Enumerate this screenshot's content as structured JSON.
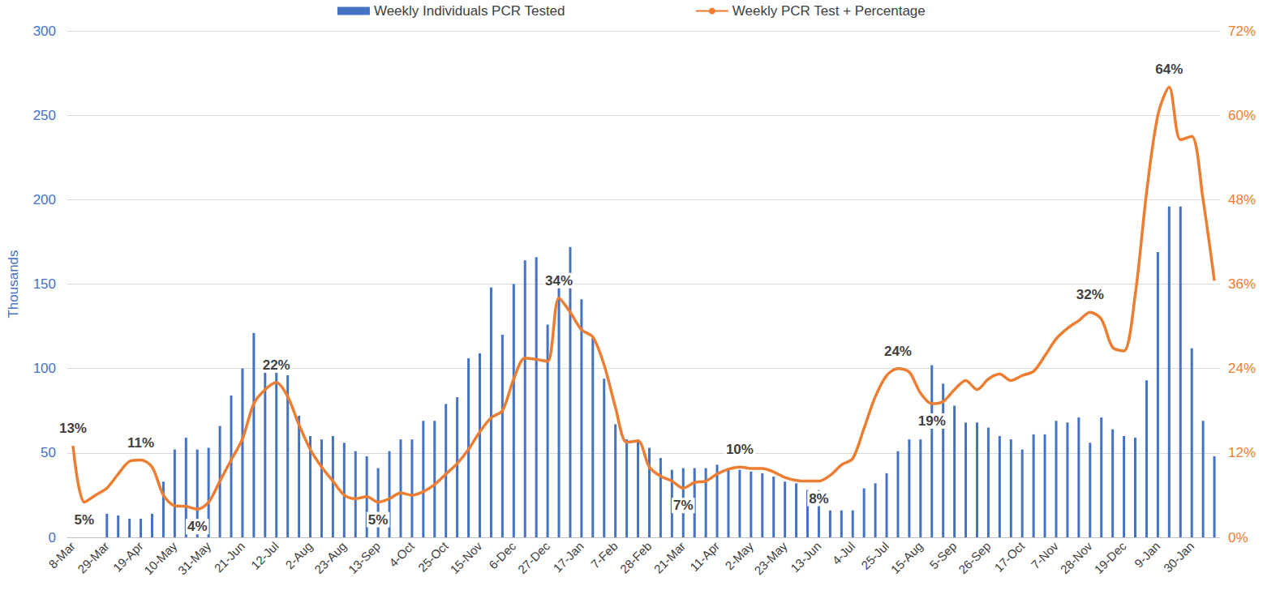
{
  "chart_data": {
    "type": "bar",
    "ylabel": "Thousands",
    "categories": [
      "8-Mar",
      null,
      null,
      "29-Mar",
      null,
      null,
      "19-Apr",
      null,
      null,
      "10-May",
      null,
      null,
      "31-May",
      null,
      null,
      "21-Jun",
      null,
      null,
      "12-Jul",
      null,
      null,
      "2-Aug",
      null,
      null,
      "23-Aug",
      null,
      null,
      "13-Sep",
      null,
      null,
      "4-Oct",
      null,
      null,
      "25-Oct",
      null,
      null,
      "15-Nov",
      null,
      null,
      "6-Dec",
      null,
      null,
      "27-Dec",
      null,
      null,
      "17-Jan",
      null,
      null,
      "7-Feb",
      null,
      null,
      "28-Feb",
      null,
      null,
      "21-Mar",
      null,
      null,
      "11-Apr",
      null,
      null,
      "2-May",
      null,
      null,
      "23-May",
      null,
      null,
      "13-Jun",
      null,
      null,
      "4-Jul",
      null,
      null,
      "25-Jul",
      null,
      null,
      "15-Aug",
      null,
      null,
      "5-Sep",
      null,
      null,
      "26-Sep",
      null,
      null,
      "17-Oct",
      null,
      null,
      "7-Nov",
      null,
      null,
      "28-Nov",
      null,
      null,
      "19-Dec",
      null,
      null,
      "9-Jan",
      null,
      null,
      "30-Jan",
      null,
      null
    ],
    "series": [
      {
        "name": "Weekly Individuals PCR Tested",
        "type": "bar",
        "color": "#4472c4",
        "values": [
          null,
          null,
          null,
          14,
          13,
          11,
          11,
          14,
          33,
          52,
          59,
          52,
          53,
          66,
          84,
          100,
          121,
          106,
          104,
          96,
          72,
          60,
          58,
          60,
          56,
          51,
          48,
          41,
          51,
          58,
          58,
          69,
          69,
          79,
          83,
          106,
          109,
          148,
          120,
          150,
          164,
          166,
          126,
          151,
          172,
          141,
          118,
          94,
          67,
          58,
          58,
          53,
          47,
          40,
          41,
          41,
          41,
          43,
          41,
          40,
          39,
          38,
          36,
          33,
          32,
          28,
          28,
          16,
          16,
          16,
          29,
          32,
          38,
          51,
          58,
          58,
          102,
          91,
          78,
          68,
          68,
          65,
          60,
          58,
          52,
          61,
          61,
          69,
          68,
          71,
          56,
          71,
          64,
          60,
          59,
          93,
          169,
          196,
          196,
          112,
          69,
          48
        ]
      },
      {
        "name": "Weekly PCR Test + Percentage",
        "type": "line",
        "axis": "y2",
        "color": "#ed7d31",
        "values": [
          13,
          5,
          6,
          7,
          9,
          10.8,
          11,
          10,
          6,
          4.5,
          4.4,
          4,
          5,
          8,
          11,
          14,
          19,
          21,
          22,
          20,
          16,
          12.5,
          10,
          8,
          6,
          5.5,
          5.8,
          5,
          5.5,
          6.3,
          6,
          6.5,
          7.5,
          9,
          10.5,
          12.5,
          15,
          17,
          18,
          22.5,
          25.5,
          25.3,
          25,
          34,
          32,
          29.5,
          28.5,
          24.5,
          18.5,
          13.5,
          13.7,
          10,
          8.7,
          8,
          7,
          7.8,
          8,
          9,
          9.7,
          10,
          9.8,
          9.8,
          9.3,
          8.5,
          8.1,
          8,
          8,
          8.8,
          10.3,
          11.2,
          15.5,
          20,
          23,
          24,
          23.5,
          20.5,
          19,
          19.3,
          21,
          22.3,
          21,
          22.5,
          23.2,
          22.3,
          23,
          23.6,
          25.8,
          28.2,
          29.7,
          30.8,
          32,
          31,
          27,
          26.5,
          34.5,
          49,
          60,
          64,
          56.5,
          57,
          48,
          36.5
        ],
        "value_labels": [
          "13%",
          "5%",
          null,
          null,
          null,
          null,
          "11%",
          null,
          null,
          null,
          null,
          "4%",
          null,
          null,
          null,
          null,
          null,
          null,
          "22%",
          null,
          null,
          null,
          null,
          null,
          null,
          null,
          null,
          "5%",
          null,
          null,
          null,
          null,
          null,
          null,
          null,
          null,
          null,
          null,
          null,
          null,
          null,
          null,
          null,
          "34%",
          null,
          null,
          null,
          null,
          null,
          null,
          null,
          null,
          null,
          null,
          "7%",
          null,
          null,
          null,
          null,
          "10%",
          null,
          null,
          null,
          null,
          null,
          null,
          "8%",
          null,
          null,
          null,
          null,
          null,
          null,
          "24%",
          null,
          null,
          "19%",
          null,
          null,
          null,
          null,
          null,
          null,
          null,
          null,
          null,
          null,
          null,
          null,
          null,
          "32%",
          null,
          null,
          null,
          null,
          null,
          null,
          "64%",
          null,
          null,
          null,
          null
        ]
      }
    ],
    "ylim": [
      0,
      300
    ],
    "yticks": [
      0,
      50,
      100,
      150,
      200,
      250,
      300
    ],
    "y2lim": [
      0,
      72
    ],
    "y2ticks": [
      {
        "value": 0,
        "label": "0%"
      },
      {
        "value": 12,
        "label": "12%"
      },
      {
        "value": 24,
        "label": "24%"
      },
      {
        "value": 36,
        "label": "36%"
      },
      {
        "value": 48,
        "label": "48%"
      },
      {
        "value": 60,
        "label": "60%"
      },
      {
        "value": 72,
        "label": "72%"
      }
    ],
    "grid": true,
    "legend": "top",
    "data_labels": true
  }
}
